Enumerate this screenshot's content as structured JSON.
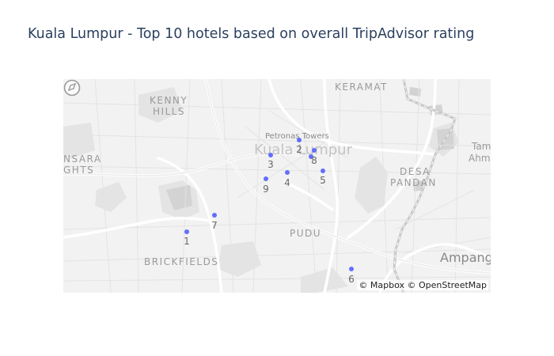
{
  "title": "Kuala Lumpur - Top 10 hotels based on overall TripAdvisor rating",
  "map": {
    "attribution": "© Mapbox © OpenStreetMap",
    "style": "light",
    "labels": {
      "keramat": "KERAMAT",
      "kenny": "KENNY",
      "hills": "HILLS",
      "petronas": "Petronas Towers",
      "city": "Kuala Lumpur",
      "nsara": "NSARA",
      "ghts": "GHTS",
      "desa": "DESA",
      "pandan": "PANDAN",
      "tam": "Tam",
      "ahmad": "Ahma",
      "pudu": "PUDU",
      "brickfields": "BRICKFIELDS",
      "ampang": "Ampang"
    },
    "hotels": [
      {
        "rank": "1",
        "color": "#636efa"
      },
      {
        "rank": "2",
        "color": "#636efa"
      },
      {
        "rank": "3",
        "color": "#636efa"
      },
      {
        "rank": "4",
        "color": "#636efa"
      },
      {
        "rank": "5",
        "color": "#636efa"
      },
      {
        "rank": "6",
        "color": "#636efa"
      },
      {
        "rank": "7",
        "color": "#636efa"
      },
      {
        "rank": "8",
        "color": "#636efa"
      },
      {
        "rank": "9",
        "color": "#636efa"
      }
    ]
  }
}
